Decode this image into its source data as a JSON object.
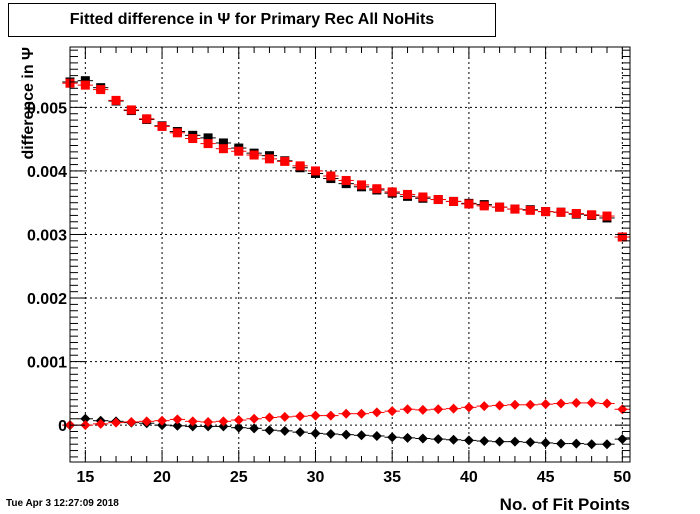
{
  "header": {
    "title": "Fitted difference in  Ψ  for Primary Rec All NoHits"
  },
  "footer": {
    "timestamp": "Tue Apr  3 12:27:09 2018"
  },
  "chart_data": {
    "type": "scatter",
    "title": "Fitted difference in  Ψ  for Primary Rec All NoHits",
    "xlabel": "No. of Fit Points",
    "ylabel": "difference in  Ψ",
    "xlim": [
      14,
      50.5
    ],
    "ylim": [
      -0.00058,
      0.00595
    ],
    "x_ticks": [
      15,
      20,
      25,
      30,
      35,
      40,
      45,
      50
    ],
    "x_tick_labels": [
      "15",
      "20",
      "25",
      "30",
      "35",
      "40",
      "45",
      "50"
    ],
    "y_ticks": [
      0,
      0.001,
      0.002,
      0.003,
      0.004,
      0.005
    ],
    "y_tick_labels": [
      "0",
      "0.001",
      "0.002",
      "0.003",
      "0.004",
      "0.005"
    ],
    "grid": true,
    "x": [
      14,
      15,
      16,
      17,
      18,
      19,
      20,
      21,
      22,
      23,
      24,
      25,
      26,
      27,
      28,
      29,
      30,
      31,
      32,
      33,
      34,
      35,
      36,
      37,
      38,
      39,
      40,
      41,
      42,
      43,
      44,
      45,
      46,
      47,
      48,
      49,
      50
    ],
    "series": [
      {
        "marker": "square",
        "color": "#000000",
        "values": [
          0.0054,
          0.00542,
          0.00531,
          0.0051,
          0.00495,
          0.00481,
          0.00471,
          0.00462,
          0.00456,
          0.00452,
          0.00444,
          0.00436,
          0.00428,
          0.00424,
          0.00416,
          0.00405,
          0.00396,
          0.00388,
          0.0038,
          0.00375,
          0.0037,
          0.00365,
          0.0036,
          0.00357,
          0.00355,
          0.00352,
          0.00349,
          0.00347,
          0.00343,
          0.0034,
          0.00339,
          0.00336,
          0.00335,
          0.00332,
          0.0033,
          0.00326,
          0.00296
        ]
      },
      {
        "marker": "square",
        "color": "#ff0000",
        "values": [
          0.00538,
          0.00535,
          0.00528,
          0.00511,
          0.00496,
          0.00482,
          0.0047,
          0.0046,
          0.00451,
          0.00443,
          0.00435,
          0.00431,
          0.00425,
          0.00419,
          0.00415,
          0.00408,
          0.004,
          0.00392,
          0.00385,
          0.00378,
          0.00372,
          0.00367,
          0.00363,
          0.00359,
          0.00355,
          0.00352,
          0.00348,
          0.00345,
          0.00343,
          0.0034,
          0.00338,
          0.00336,
          0.00335,
          0.00333,
          0.00331,
          0.00329,
          0.00296
        ]
      },
      {
        "marker": "diamond",
        "color": "#000000",
        "values": [
          0.0,
          0.0001,
          7e-05,
          6e-05,
          4e-05,
          3e-05,
          0.0,
          -1e-05,
          -2e-05,
          -2e-05,
          -2e-05,
          -4e-05,
          -5e-05,
          -8e-05,
          -9e-05,
          -0.00011,
          -0.00013,
          -0.00014,
          -0.00015,
          -0.00016,
          -0.00017,
          -0.00019,
          -0.0002,
          -0.00021,
          -0.00022,
          -0.00023,
          -0.00024,
          -0.00025,
          -0.00026,
          -0.00026,
          -0.00027,
          -0.00028,
          -0.00029,
          -0.00029,
          -0.0003,
          -0.0003,
          -0.00022
        ]
      },
      {
        "marker": "diamond",
        "color": "#ff0000",
        "values": [
          0.0,
          0.0,
          2e-05,
          4e-05,
          5e-05,
          6e-05,
          7e-05,
          9e-05,
          6e-05,
          5e-05,
          6e-05,
          8e-05,
          0.0001,
          0.00012,
          0.00013,
          0.00014,
          0.00015,
          0.00015,
          0.00018,
          0.00018,
          0.0002,
          0.00022,
          0.00025,
          0.00024,
          0.00025,
          0.00026,
          0.00028,
          0.0003,
          0.00031,
          0.00032,
          0.00032,
          0.00033,
          0.00034,
          0.00035,
          0.00035,
          0.00034,
          0.00025
        ]
      }
    ]
  }
}
